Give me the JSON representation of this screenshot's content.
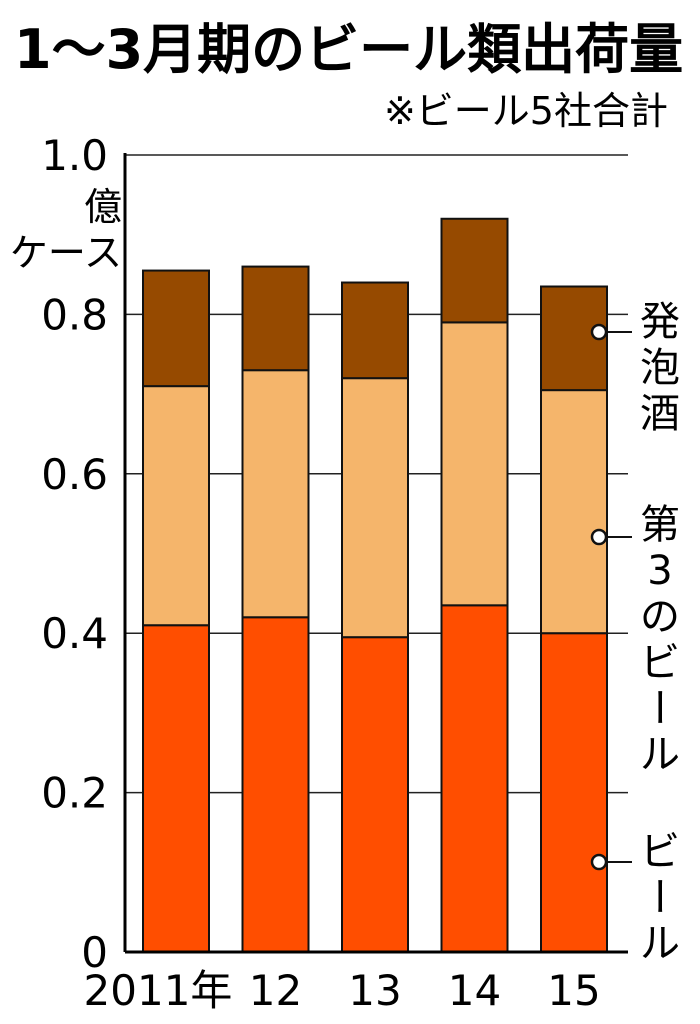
{
  "chart_data": {
    "type": "bar",
    "stacked": true,
    "title": "1〜3月期のビール類出荷量",
    "subtitle": "※ビール5社合計",
    "ylabel": "億ケース",
    "ylabel_lines": [
      "億",
      "ケース"
    ],
    "top_tick_label": "1.0",
    "ylim": [
      0,
      1.0
    ],
    "yticks": [
      0,
      0.2,
      0.4,
      0.6,
      0.8,
      1.0
    ],
    "ytick_labels": [
      "0",
      "0.2",
      "0.4",
      "0.6",
      "0.8",
      "1.0"
    ],
    "grid": true,
    "categories": [
      "2011年",
      "12",
      "13",
      "14",
      "15"
    ],
    "series": [
      {
        "name": "ビール",
        "color": "#ff4e00",
        "values": [
          0.41,
          0.42,
          0.395,
          0.435,
          0.4
        ]
      },
      {
        "name": "第3のビール",
        "color": "#f5b56b",
        "values": [
          0.3,
          0.31,
          0.325,
          0.355,
          0.305
        ]
      },
      {
        "name": "発泡酒",
        "color": "#964a00",
        "values": [
          0.145,
          0.13,
          0.12,
          0.13,
          0.13
        ]
      }
    ],
    "legend_position": "right, inline with bars",
    "legend_label_chars": [
      [
        "ビ",
        "ー",
        "ル"
      ],
      [
        "第",
        "3",
        "の",
        "ビ",
        "ー",
        "ル"
      ],
      [
        "発",
        "泡",
        "酒"
      ]
    ]
  }
}
